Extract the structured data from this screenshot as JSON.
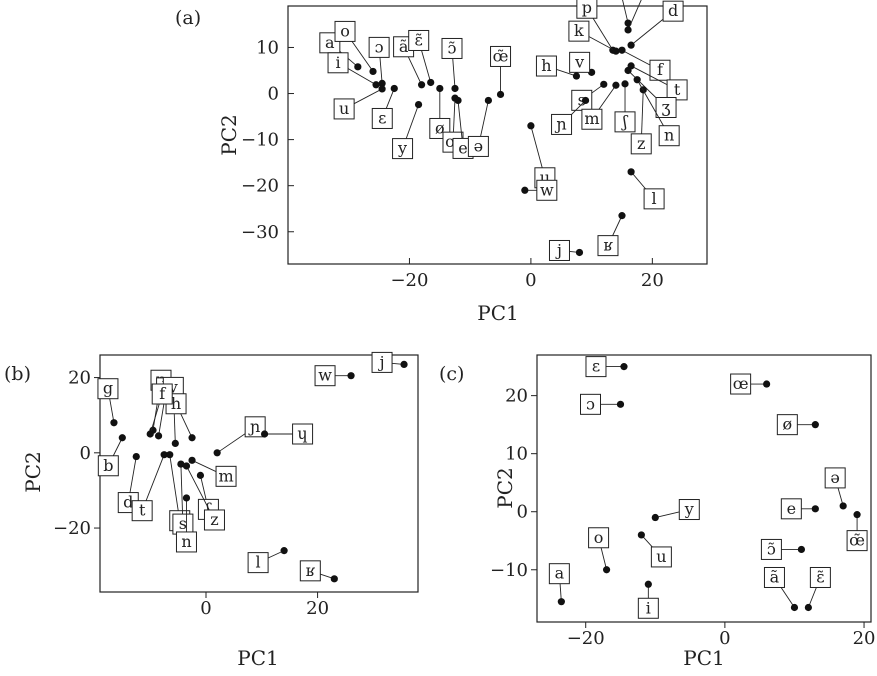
{
  "chart_data": [
    {
      "panel_label": "(a)",
      "type": "scatter",
      "xlabel": "PC1",
      "ylabel": "PC2",
      "xlim": [
        -40,
        29
      ],
      "ylim": [
        -37,
        19
      ],
      "xticks": [
        -20,
        0,
        20
      ],
      "xtick_labels": [
        "−20",
        "0",
        "20"
      ],
      "yticks": [
        10,
        0,
        -10,
        -20,
        -30
      ],
      "ytick_labels": [
        "10",
        "0",
        "−10",
        "−20",
        "−30"
      ],
      "points": [
        {
          "label": "a",
          "x": -28.5,
          "y": 5.8
        },
        {
          "label": "o",
          "x": -26.0,
          "y": 4.8
        },
        {
          "label": "i",
          "x": -25.5,
          "y": 1.9
        },
        {
          "label": "ɔ",
          "x": -24.5,
          "y": 2.2
        },
        {
          "label": "u",
          "x": -24.5,
          "y": 1.0
        },
        {
          "label": "ɛ",
          "x": -22.5,
          "y": 1.1
        },
        {
          "label": "ã",
          "x": -18.0,
          "y": 1.9
        },
        {
          "label": "ɛ̃",
          "x": -16.5,
          "y": 2.4
        },
        {
          "label": "y",
          "x": -18.5,
          "y": -2.4
        },
        {
          "label": "ø",
          "x": -15.0,
          "y": 1.1
        },
        {
          "label": "ɔ̃",
          "x": -12.5,
          "y": 1.1
        },
        {
          "label": "œ",
          "x": -12.5,
          "y": -1.0
        },
        {
          "label": "e",
          "x": -12.0,
          "y": -1.5
        },
        {
          "label": "œ̃",
          "x": -5.0,
          "y": -0.2
        },
        {
          "label": "ə",
          "x": -7.0,
          "y": -1.5
        },
        {
          "label": "ɥ",
          "x": 0.0,
          "y": -7.0
        },
        {
          "label": "w",
          "x": -1.0,
          "y": -21.0
        },
        {
          "label": "j",
          "x": 8.0,
          "y": -34.5
        },
        {
          "label": "ʁ",
          "x": 15.0,
          "y": -26.5
        },
        {
          "label": "l",
          "x": 16.5,
          "y": -17.0
        },
        {
          "label": "p",
          "x": 13.5,
          "y": 9.4
        },
        {
          "label": "g",
          "x": 16.0,
          "y": 15.3
        },
        {
          "label": "b",
          "x": 16.0,
          "y": 13.8
        },
        {
          "label": "d",
          "x": 16.5,
          "y": 10.5
        },
        {
          "label": "k",
          "x": 14.0,
          "y": 9.2
        },
        {
          "label": "f",
          "x": 15.0,
          "y": 9.4
        },
        {
          "label": "v",
          "x": 10.0,
          "y": 4.6
        },
        {
          "label": "h",
          "x": 7.5,
          "y": 3.8
        },
        {
          "label": "t",
          "x": 16.5,
          "y": 6.0
        },
        {
          "label": "ʒ",
          "x": 16.0,
          "y": 5.0
        },
        {
          "label": "s",
          "x": 12.0,
          "y": 2.0
        },
        {
          "label": "ʃ",
          "x": 15.5,
          "y": 2.1
        },
        {
          "label": "m",
          "x": 14.0,
          "y": 1.8
        },
        {
          "label": "ɲ",
          "x": 9.0,
          "y": -1.5
        },
        {
          "label": "z",
          "x": 18.5,
          "y": 0.8
        },
        {
          "label": "n",
          "x": 17.5,
          "y": 3.0
        }
      ]
    },
    {
      "panel_label": "(b)",
      "type": "scatter",
      "xlabel": "PC1",
      "ylabel": "PC2",
      "xlim": [
        -19,
        38
      ],
      "ylim": [
        -37,
        26
      ],
      "xticks": [
        0,
        20
      ],
      "xtick_labels": [
        "0",
        "20"
      ],
      "yticks": [
        20,
        0,
        -20
      ],
      "ytick_labels": [
        "20",
        "0",
        "−20"
      ],
      "points": [
        {
          "label": "w",
          "x": 26.0,
          "y": 20.5
        },
        {
          "label": "j",
          "x": 35.5,
          "y": 23.5
        },
        {
          "label": "g",
          "x": -16.5,
          "y": 8.0
        },
        {
          "label": "p",
          "x": -9.5,
          "y": 6.0
        },
        {
          "label": "k",
          "x": -8.5,
          "y": 4.5
        },
        {
          "label": "v",
          "x": -5.5,
          "y": 2.5
        },
        {
          "label": "h",
          "x": -2.5,
          "y": 4.0
        },
        {
          "label": "f",
          "x": -10.0,
          "y": 5.0
        },
        {
          "label": "ɲ",
          "x": 2.0,
          "y": 0.0
        },
        {
          "label": "ɥ",
          "x": 10.5,
          "y": 5.0
        },
        {
          "label": "b",
          "x": -15.0,
          "y": 4.0
        },
        {
          "label": "m",
          "x": -2.5,
          "y": -2.0
        },
        {
          "label": "d",
          "x": -12.5,
          "y": -1.0
        },
        {
          "label": "t",
          "x": -7.5,
          "y": -0.5
        },
        {
          "label": "ʒ",
          "x": -6.5,
          "y": -0.5
        },
        {
          "label": "ʃ",
          "x": -1.0,
          "y": -6.0
        },
        {
          "label": "s",
          "x": -4.5,
          "y": -3.0
        },
        {
          "label": "z",
          "x": -3.5,
          "y": -3.5
        },
        {
          "label": "n",
          "x": -3.5,
          "y": -12.0
        },
        {
          "label": "l",
          "x": 14.0,
          "y": -26.0
        },
        {
          "label": "ʁ",
          "x": 23.0,
          "y": -33.5
        }
      ]
    },
    {
      "panel_label": "(c)",
      "type": "scatter",
      "xlabel": "PC1",
      "ylabel": "PC2",
      "xlim": [
        -27,
        21
      ],
      "ylim": [
        -19,
        27
      ],
      "xticks": [
        -20,
        0,
        20
      ],
      "xtick_labels": [
        "−20",
        "0",
        "20"
      ],
      "yticks": [
        20,
        10,
        0,
        -10
      ],
      "ytick_labels": [
        "20",
        "10",
        "0",
        "−10"
      ],
      "points": [
        {
          "label": "ɛ",
          "x": -14.5,
          "y": 25.0
        },
        {
          "label": "ɔ",
          "x": -15.0,
          "y": 18.5
        },
        {
          "label": "œ",
          "x": 6.0,
          "y": 22.0
        },
        {
          "label": "ø",
          "x": 13.0,
          "y": 15.0
        },
        {
          "label": "ə",
          "x": 17.0,
          "y": 1.0
        },
        {
          "label": "e",
          "x": 13.0,
          "y": 0.5
        },
        {
          "label": "œ̃",
          "x": 19.0,
          "y": -0.5
        },
        {
          "label": "y",
          "x": -10.0,
          "y": -1.0
        },
        {
          "label": "u",
          "x": -12.0,
          "y": -4.0
        },
        {
          "label": "ɔ̃",
          "x": 11.0,
          "y": -6.5
        },
        {
          "label": "o",
          "x": -17.0,
          "y": -10.0
        },
        {
          "label": "i",
          "x": -11.0,
          "y": -12.5
        },
        {
          "label": "a",
          "x": -23.5,
          "y": -15.5
        },
        {
          "label": "ã",
          "x": 10.0,
          "y": -16.5
        },
        {
          "label": "ɛ̃",
          "x": 12.0,
          "y": -16.5
        }
      ]
    }
  ]
}
